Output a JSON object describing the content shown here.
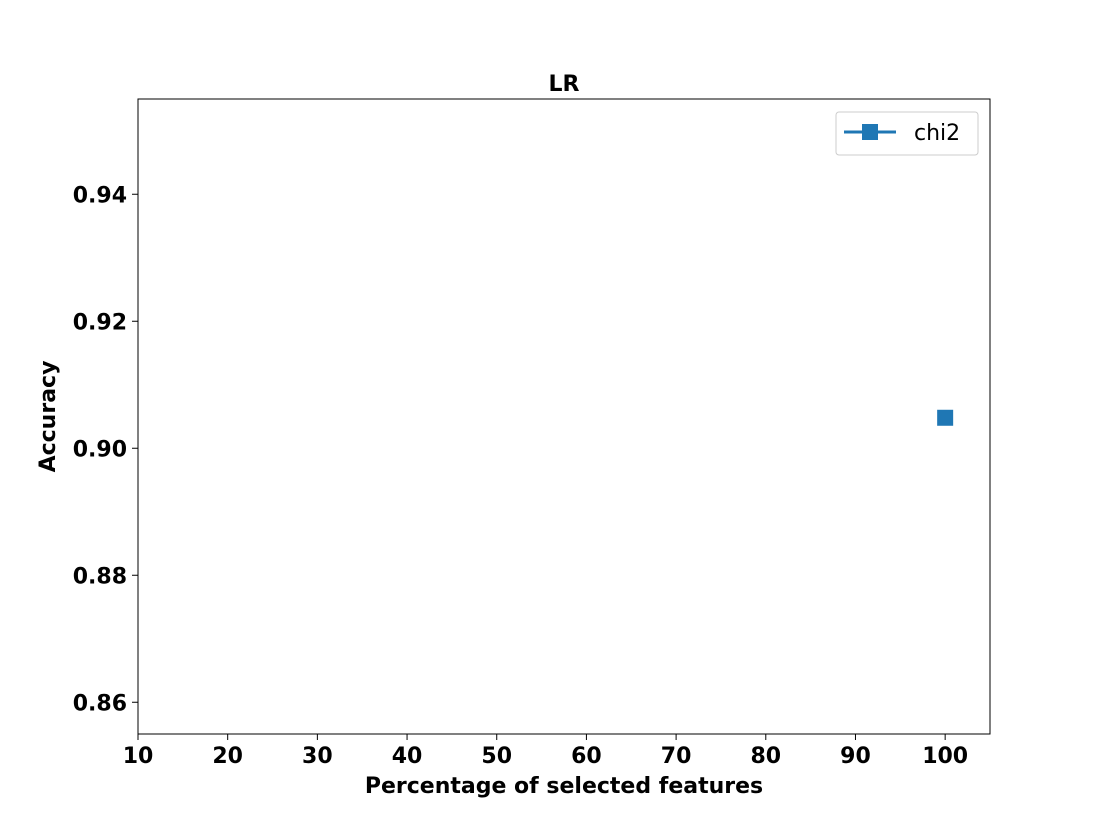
{
  "chart_data": {
    "type": "line",
    "title": "LR",
    "xlabel": "Percentage of selected features",
    "ylabel": "Accuracy",
    "xlim": [
      10,
      105
    ],
    "ylim": [
      0.855,
      0.955
    ],
    "xticks": [
      10,
      20,
      30,
      40,
      50,
      60,
      70,
      80,
      90,
      100
    ],
    "xtick_labels": [
      "10",
      "20",
      "30",
      "40",
      "50",
      "60",
      "70",
      "80",
      "90",
      "100"
    ],
    "yticks": [
      0.86,
      0.88,
      0.9,
      0.92,
      0.94
    ],
    "ytick_labels": [
      "0.86",
      "0.88",
      "0.90",
      "0.92",
      "0.94"
    ],
    "grid": false,
    "legend_position": "top-right",
    "series": [
      {
        "name": "chi2",
        "color": "#1f77b4",
        "marker": "square",
        "x": [
          100
        ],
        "y": [
          0.9048
        ]
      }
    ]
  }
}
